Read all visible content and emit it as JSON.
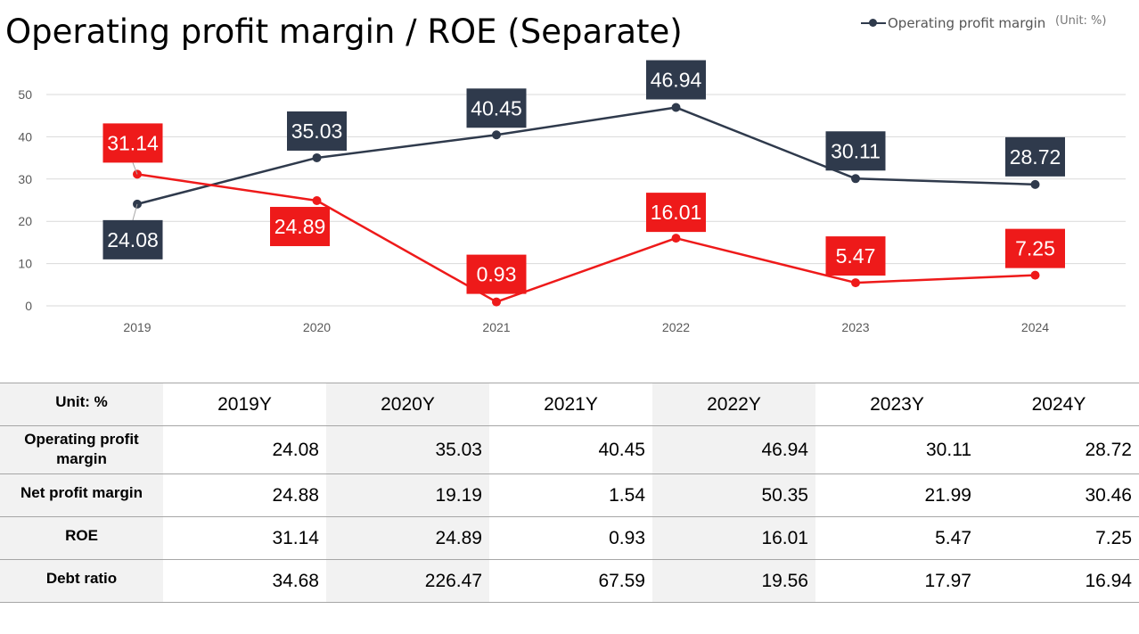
{
  "title": "Operating profit margin / ROE (Separate)",
  "legend": {
    "label": "Operating profit margin",
    "unit": "(Unit: %)"
  },
  "colors": {
    "opm": "#2f3a4c",
    "roe": "#ee1a1a",
    "grid": "#d9d9d9",
    "table_shade": "#f2f2f2"
  },
  "chart_data": {
    "type": "line",
    "x": [
      "2019",
      "2020",
      "2021",
      "2022",
      "2023",
      "2024"
    ],
    "ylim": [
      0,
      50
    ],
    "yticks": [
      0,
      10,
      20,
      30,
      40,
      50
    ],
    "grid": true,
    "legend_position": "top-right",
    "series": [
      {
        "key": "opm",
        "name": "Operating profit margin",
        "values": [
          24.08,
          35.03,
          40.45,
          46.94,
          30.11,
          28.72
        ],
        "labels": [
          "24.08",
          "35.03",
          "40.45",
          "46.94",
          "30.11",
          "28.72"
        ]
      },
      {
        "key": "roe",
        "values": [
          31.14,
          24.89,
          0.93,
          16.01,
          5.47,
          7.25
        ],
        "labels": [
          "31.14",
          "24.89",
          "0.93",
          "16.01",
          "5.47",
          "7.25"
        ]
      }
    ]
  },
  "table": {
    "unit_label": "Unit: %",
    "columns": [
      "2019Y",
      "2020Y",
      "2021Y",
      "2022Y",
      "2023Y",
      "2024Y"
    ],
    "rows": [
      {
        "label": "Operating profit margin",
        "values": [
          "24.08",
          "35.03",
          "40.45",
          "46.94",
          "30.11",
          "28.72"
        ]
      },
      {
        "label": "Net profit margin",
        "values": [
          "24.88",
          "19.19",
          "1.54",
          "50.35",
          "21.99",
          "30.46"
        ]
      },
      {
        "label": "ROE",
        "values": [
          "31.14",
          "24.89",
          "0.93",
          "16.01",
          "5.47",
          "7.25"
        ]
      },
      {
        "label": "Debt ratio",
        "values": [
          "34.68",
          "226.47",
          "67.59",
          "19.56",
          "17.97",
          "16.94"
        ]
      }
    ]
  }
}
